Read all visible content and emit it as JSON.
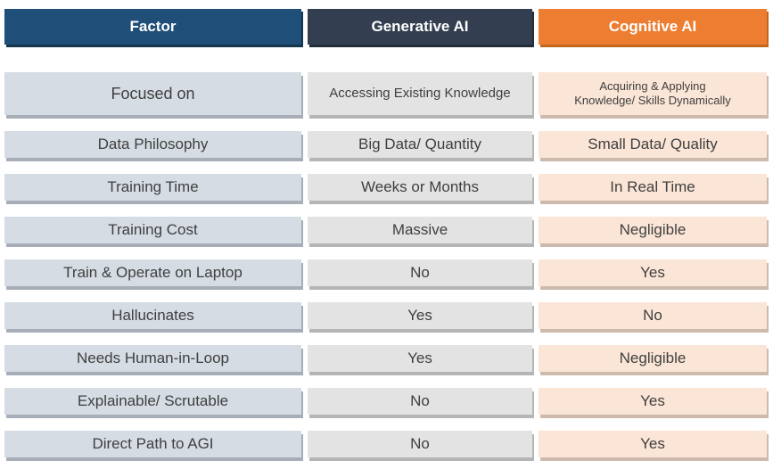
{
  "colors": {
    "factor-header-bg": "#1F4E78",
    "generative-header-bg": "#333F50",
    "cognitive-header-bg": "#ED7D31",
    "factor-cell-bg": "#D5DCE4",
    "generative-cell-bg": "#E3E3E3",
    "cognitive-cell-bg": "#FAE5D6",
    "header-text": "#FFFFFF",
    "cell-text": "#3F3F3F"
  },
  "table": {
    "headers": {
      "factor": "Factor",
      "generative": "Generative AI",
      "cognitive": "Cognitive AI"
    },
    "rows": [
      {
        "factor": "Focused on",
        "generative": "Accessing Existing Knowledge",
        "cognitive": "Acquiring & Applying Knowledge/ Skills Dynamically"
      },
      {
        "factor": "Data Philosophy",
        "generative": "Big Data/ Quantity",
        "cognitive": "Small Data/ Quality"
      },
      {
        "factor": "Training Time",
        "generative": "Weeks or Months",
        "cognitive": "In Real Time"
      },
      {
        "factor": "Training Cost",
        "generative": "Massive",
        "cognitive": "Negligible"
      },
      {
        "factor": "Train & Operate on Laptop",
        "generative": "No",
        "cognitive": "Yes"
      },
      {
        "factor": "Hallucinates",
        "generative": "Yes",
        "cognitive": "No"
      },
      {
        "factor": "Needs Human-in-Loop",
        "generative": "Yes",
        "cognitive": "Negligible"
      },
      {
        "factor": "Explainable/ Scrutable",
        "generative": "No",
        "cognitive": "Yes"
      },
      {
        "factor": "Direct Path to AGI",
        "generative": "No",
        "cognitive": "Yes"
      }
    ]
  },
  "chart_data": {
    "type": "table",
    "title": "",
    "columns": [
      "Factor",
      "Generative AI",
      "Cognitive AI"
    ],
    "rows": [
      [
        "Focused on",
        "Accessing Existing Knowledge",
        "Acquiring & Applying Knowledge/ Skills Dynamically"
      ],
      [
        "Data Philosophy",
        "Big Data/ Quantity",
        "Small Data/ Quality"
      ],
      [
        "Training Time",
        "Weeks or Months",
        "In Real Time"
      ],
      [
        "Training Cost",
        "Massive",
        "Negligible"
      ],
      [
        "Train & Operate on Laptop",
        "No",
        "Yes"
      ],
      [
        "Hallucinates",
        "Yes",
        "No"
      ],
      [
        "Needs Human-in-Loop",
        "Yes",
        "Negligible"
      ],
      [
        "Explainable/ Scrutable",
        "No",
        "Yes"
      ],
      [
        "Direct Path to AGI",
        "No",
        "Yes"
      ]
    ]
  }
}
